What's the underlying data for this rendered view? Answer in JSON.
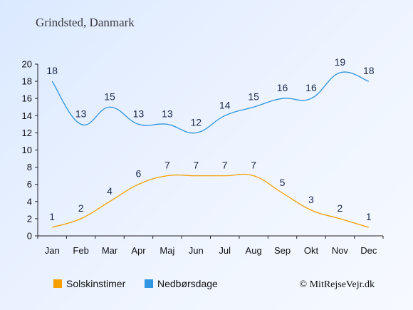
{
  "chart_data": {
    "type": "line",
    "title": "Grindsted, Danmark",
    "categories": [
      "Jan",
      "Feb",
      "Mar",
      "Apr",
      "Maj",
      "Jun",
      "Jul",
      "Aug",
      "Sep",
      "Okt",
      "Nov",
      "Dec"
    ],
    "ylim": [
      0,
      20
    ],
    "yticks": [
      0,
      2,
      4,
      6,
      8,
      10,
      12,
      14,
      16,
      18,
      20
    ],
    "grid": false,
    "legend_position": "bottom",
    "series": [
      {
        "name": "Solskinstimer",
        "color": "#f5a000",
        "values": [
          1,
          2,
          4,
          6,
          7,
          7,
          7,
          7,
          5,
          3,
          2,
          1
        ]
      },
      {
        "name": "Nedbørsdage",
        "color": "#2f95e0",
        "values": [
          18,
          13,
          15,
          13,
          13,
          12,
          14,
          15,
          16,
          16,
          19,
          18
        ]
      }
    ],
    "credit": "© MitRejseVejr.dk"
  }
}
